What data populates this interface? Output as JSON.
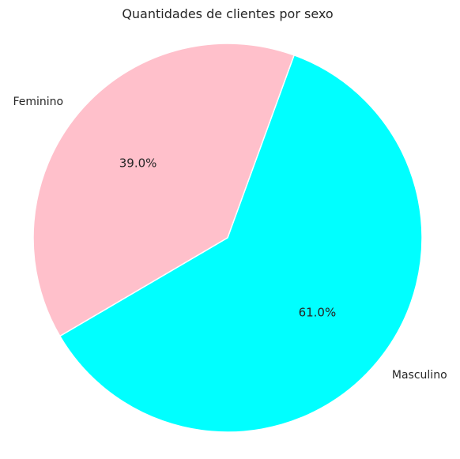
{
  "chart_data": {
    "type": "pie",
    "title": "Quantidades de clientes por sexo",
    "categories": [
      "Feminino",
      "Masculino"
    ],
    "values": [
      39.0,
      61.0
    ],
    "percent_labels": [
      "39.0%",
      "61.0%"
    ],
    "colors": [
      "#FFC0CB",
      "#00FFFF"
    ],
    "edge_color": "#ffffff",
    "legend": "none",
    "start_angle_deg": 70
  }
}
